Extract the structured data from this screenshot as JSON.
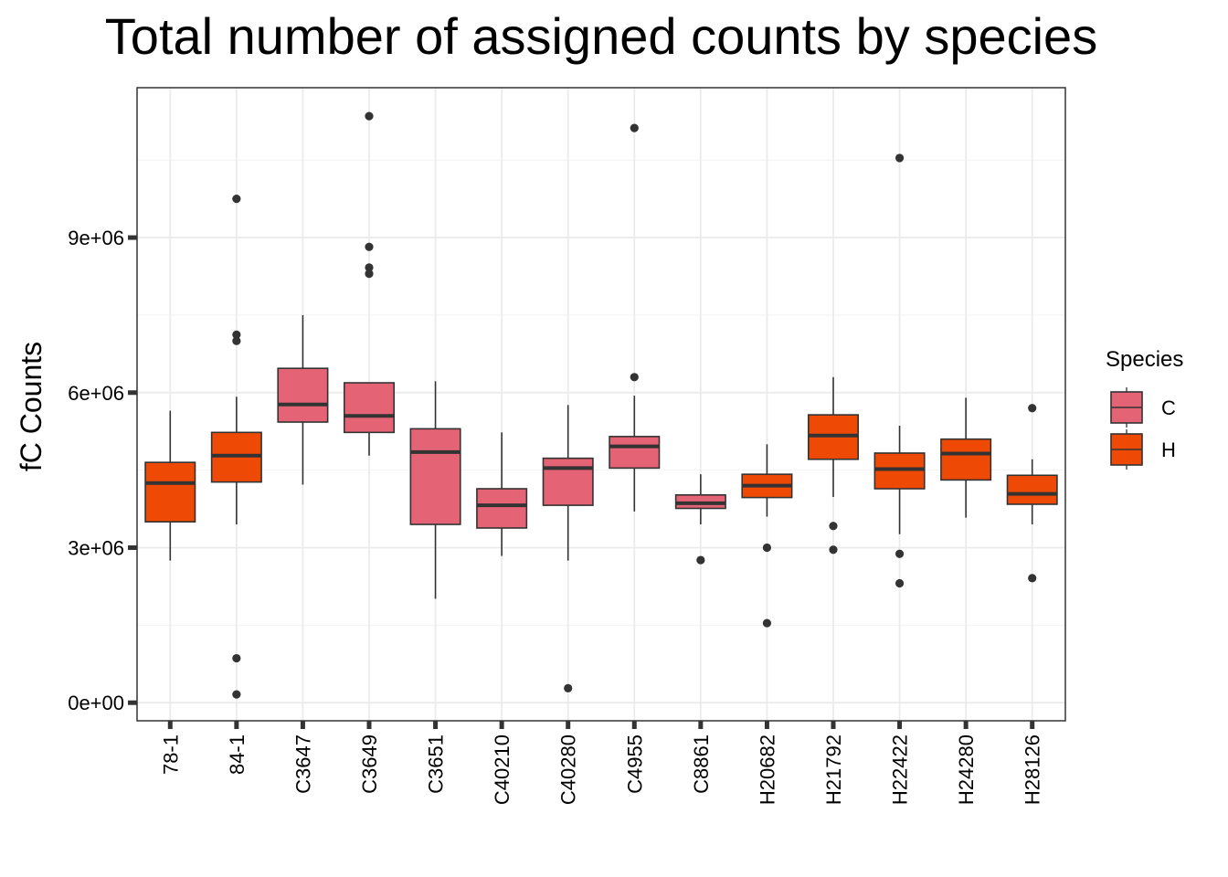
{
  "chart_data": {
    "type": "box",
    "title": "Total number of assigned counts by species",
    "xlabel": "",
    "ylabel": "fC Counts",
    "ylim": [
      -350000,
      11900000
    ],
    "yticks": [
      0,
      3000000,
      6000000,
      9000000
    ],
    "ytick_labels": [
      "0e+00",
      "3e+06",
      "6e+06",
      "9e+06"
    ],
    "grid": true,
    "legend": {
      "title": "Species",
      "placement": "right",
      "entries": [
        {
          "label": "C",
          "color": "#E46374"
        },
        {
          "label": "H",
          "color": "#EE4A06"
        }
      ]
    },
    "categories": [
      "78-1",
      "84-1",
      "C3647",
      "C3649",
      "C3651",
      "C40210",
      "C40280",
      "C4955",
      "C8861",
      "H20682",
      "H21792",
      "H22422",
      "H24280",
      "H28126"
    ],
    "boxes": [
      {
        "category": "78-1",
        "species": "H",
        "whisker_low": 2750000,
        "q1": 3500000,
        "median": 4250000,
        "q3": 4650000,
        "whisker_high": 5650000,
        "outliers": []
      },
      {
        "category": "84-1",
        "species": "H",
        "whisker_low": 3450000,
        "q1": 4270000,
        "median": 4780000,
        "q3": 5230000,
        "whisker_high": 5920000,
        "outliers": [
          9750000,
          7120000,
          7000000,
          860000,
          160000
        ]
      },
      {
        "category": "C3647",
        "species": "C",
        "whisker_low": 4220000,
        "q1": 5430000,
        "median": 5770000,
        "q3": 6470000,
        "whisker_high": 7500000,
        "outliers": []
      },
      {
        "category": "C3649",
        "species": "C",
        "whisker_low": 4780000,
        "q1": 5230000,
        "median": 5550000,
        "q3": 6190000,
        "whisker_high": 6190000,
        "outliers": [
          11350000,
          8820000,
          8420000,
          8300000
        ]
      },
      {
        "category": "C3651",
        "species": "C",
        "whisker_low": 2010000,
        "q1": 3450000,
        "median": 4850000,
        "q3": 5300000,
        "whisker_high": 6220000,
        "outliers": []
      },
      {
        "category": "C40210",
        "species": "C",
        "whisker_low": 2840000,
        "q1": 3380000,
        "median": 3820000,
        "q3": 4140000,
        "whisker_high": 5230000,
        "outliers": []
      },
      {
        "category": "C40280",
        "species": "C",
        "whisker_low": 2750000,
        "q1": 3820000,
        "median": 4540000,
        "q3": 4730000,
        "whisker_high": 5760000,
        "outliers": [
          280000
        ]
      },
      {
        "category": "C4955",
        "species": "C",
        "whisker_low": 3700000,
        "q1": 4540000,
        "median": 4960000,
        "q3": 5150000,
        "whisker_high": 5940000,
        "outliers": [
          11120000,
          6300000
        ]
      },
      {
        "category": "C8861",
        "species": "C",
        "whisker_low": 3450000,
        "q1": 3760000,
        "median": 3860000,
        "q3": 4020000,
        "whisker_high": 4420000,
        "outliers": [
          2760000
        ]
      },
      {
        "category": "H20682",
        "species": "H",
        "whisker_low": 3600000,
        "q1": 3970000,
        "median": 4200000,
        "q3": 4420000,
        "whisker_high": 5000000,
        "outliers": [
          3000000,
          1540000
        ]
      },
      {
        "category": "H21792",
        "species": "H",
        "whisker_low": 3980000,
        "q1": 4710000,
        "median": 5170000,
        "q3": 5570000,
        "whisker_high": 6300000,
        "outliers": [
          3420000,
          2960000
        ]
      },
      {
        "category": "H22422",
        "species": "H",
        "whisker_low": 3260000,
        "q1": 4140000,
        "median": 4520000,
        "q3": 4830000,
        "whisker_high": 5360000,
        "outliers": [
          10540000,
          2880000,
          2310000
        ]
      },
      {
        "category": "H24280",
        "species": "H",
        "whisker_low": 3580000,
        "q1": 4310000,
        "median": 4820000,
        "q3": 5100000,
        "whisker_high": 5900000,
        "outliers": []
      },
      {
        "category": "H28126",
        "species": "H",
        "whisker_low": 3450000,
        "q1": 3840000,
        "median": 4040000,
        "q3": 4400000,
        "whisker_high": 4710000,
        "outliers": [
          5700000,
          2410000
        ]
      }
    ]
  }
}
